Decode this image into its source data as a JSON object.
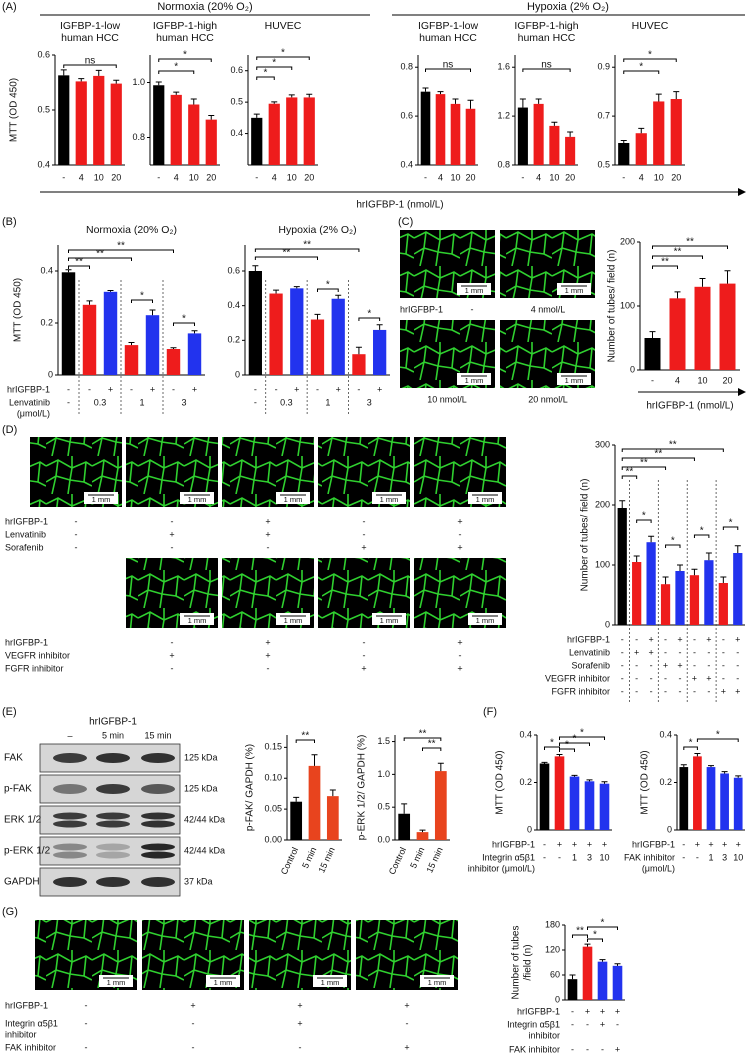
{
  "chart_data": [
    {
      "type": "bar",
      "title": [
        "IGFBP-1-low",
        "human HCC"
      ],
      "categories": [
        "-",
        "4",
        "10",
        "20"
      ],
      "values": [
        0.563,
        0.552,
        0.562,
        0.548
      ],
      "errors": [
        0.01,
        0.005,
        0.01,
        0.006
      ],
      "colors": [
        "#000000",
        "#ee1c1c",
        "#ee1c1c",
        "#ee1c1c"
      ],
      "ylim": [
        0.4,
        0.6
      ],
      "yticks": [
        0.4,
        0.5,
        0.6
      ],
      "annotations": [
        "ns"
      ]
    },
    {
      "type": "bar",
      "title": [
        "IGFBP-1-high",
        "human HCC"
      ],
      "categories": [
        "-",
        "4",
        "10",
        "20"
      ],
      "values": [
        0.99,
        0.955,
        0.92,
        0.865
      ],
      "errors": [
        0.012,
        0.01,
        0.02,
        0.015
      ],
      "colors": [
        "#000000",
        "#ee1c1c",
        "#ee1c1c",
        "#ee1c1c"
      ],
      "ylim": [
        0.7,
        1.1
      ],
      "yticks": [
        0.8,
        {
          "value": 1,
          "label": "1.0"
        }
      ],
      "annotations": [
        "*",
        "*"
      ]
    },
    {
      "type": "bar",
      "title": "HUVEC",
      "categories": [
        "-",
        "4",
        "10",
        "20"
      ],
      "values": [
        0.45,
        0.495,
        0.515,
        0.515
      ],
      "errors": [
        0.012,
        0.006,
        0.008,
        0.01
      ],
      "colors": [
        "#000000",
        "#ee1c1c",
        "#ee1c1c",
        "#ee1c1c"
      ],
      "ylim": [
        0.3,
        0.65
      ],
      "yticks": [
        0.4,
        0.5,
        0.6
      ],
      "annotations": [
        "*",
        "*",
        "*"
      ]
    },
    {
      "type": "bar",
      "title": [
        "IGFBP-1-low",
        "human HCC"
      ],
      "categories": [
        "-",
        "4",
        "10",
        "20"
      ],
      "values": [
        0.7,
        0.69,
        0.65,
        0.63
      ],
      "errors": [
        0.015,
        0.01,
        0.02,
        0.035
      ],
      "colors": [
        "#000000",
        "#ee1c1c",
        "#ee1c1c",
        "#ee1c1c"
      ],
      "ylim": [
        0.4,
        0.85
      ],
      "yticks": [
        0.4,
        0.6,
        0.8
      ],
      "annotations": [
        "ns"
      ]
    },
    {
      "type": "bar",
      "title": [
        "IGFBP-1-high",
        "human HCC"
      ],
      "categories": [
        "-",
        "4",
        "10",
        "20"
      ],
      "values": [
        1.27,
        1.3,
        1.12,
        1.03
      ],
      "errors": [
        0.07,
        0.04,
        0.03,
        0.04
      ],
      "colors": [
        "#000000",
        "#ee1c1c",
        "#ee1c1c",
        "#ee1c1c"
      ],
      "ylim": [
        0.8,
        1.7
      ],
      "yticks": [
        0.8,
        1.2,
        1.6
      ],
      "annotations": [
        "ns"
      ]
    },
    {
      "type": "bar",
      "title": "HUVEC",
      "categories": [
        "-",
        "4",
        "10",
        "20"
      ],
      "values": [
        0.59,
        0.63,
        0.76,
        0.77
      ],
      "errors": [
        0.01,
        0.02,
        0.03,
        0.03
      ],
      "colors": [
        "#000000",
        "#ee1c1c",
        "#ee1c1c",
        "#ee1c1c"
      ],
      "ylim": [
        0.5,
        0.95
      ],
      "yticks": [
        0.5,
        0.7,
        0.9
      ],
      "annotations": [
        "*",
        "*"
      ]
    },
    {
      "type": "bar",
      "title": "Normoxia (20% O₂)",
      "ylabel": "MTT (OD 450)",
      "values": [
        0.395,
        0.27,
        0.32,
        0.115,
        0.23,
        0.1,
        0.16
      ],
      "errors": [
        0.01,
        0.015,
        0.005,
        0.01,
        0.02,
        0.005,
        0.01
      ],
      "colors": [
        "#000000",
        "#ee1c1c",
        "#2233ee",
        "#ee1c1c",
        "#2233ee",
        "#ee1c1c",
        "#2233ee"
      ],
      "ylim": [
        0,
        0.5
      ],
      "yticks": [
        0,
        0.2,
        0.4
      ],
      "annotations": [
        "**",
        "**",
        "**",
        "*",
        "*"
      ],
      "conditions": [
        {
          "label": [
            "hrIGFBP-1"
          ],
          "values": [
            "-",
            "-",
            "+",
            "-",
            "+",
            "-",
            "+"
          ]
        },
        {
          "label": [
            "Lenvatinib",
            "(μmol/L)"
          ],
          "values": [
            "-",
            "0.3",
            "1",
            "3"
          ]
        }
      ]
    },
    {
      "type": "bar",
      "title": "Hypoxia (2% O₂)",
      "values": [
        0.6,
        0.47,
        0.5,
        0.32,
        0.44,
        0.12,
        0.26
      ],
      "errors": [
        0.03,
        0.02,
        0.01,
        0.03,
        0.02,
        0.04,
        0.03
      ],
      "colors": [
        "#000000",
        "#ee1c1c",
        "#2233ee",
        "#ee1c1c",
        "#2233ee",
        "#ee1c1c",
        "#2233ee"
      ],
      "ylim": [
        0,
        0.75
      ],
      "yticks": [
        0,
        0.2,
        0.4,
        0.6
      ],
      "annotations": [
        "**",
        "**",
        "*",
        "*"
      ],
      "conditions": [
        {
          "values": [
            "-",
            "-",
            "+",
            "-",
            "+",
            "-",
            "+"
          ]
        },
        {
          "values": [
            "-",
            "0.3",
            "1",
            "3"
          ]
        }
      ]
    },
    {
      "type": "bar",
      "ylabel": "Number of tubes/ field (n)",
      "xlabel": "hrIGFBP-1 (nmol/L)",
      "categories": [
        "-",
        "4",
        "10",
        "20"
      ],
      "values": [
        50,
        112,
        130,
        135
      ],
      "errors": [
        10,
        10,
        13,
        20
      ],
      "colors": [
        "#000000",
        "#ee1c1c",
        "#ee1c1c",
        "#ee1c1c"
      ],
      "ylim": [
        0,
        200
      ],
      "yticks": [
        0,
        100,
        200
      ],
      "annotations": [
        "**",
        "**",
        "**"
      ]
    },
    {
      "type": "bar",
      "ylabel": "Number of tubes/ field (n)",
      "values": [
        195,
        105,
        138,
        68,
        90,
        83,
        108,
        70,
        120
      ],
      "errors": [
        12,
        10,
        10,
        12,
        10,
        10,
        12,
        10,
        12
      ],
      "colors": [
        "#000000",
        "#ee1c1c",
        "#2233ee",
        "#ee1c1c",
        "#2233ee",
        "#ee1c1c",
        "#2233ee",
        "#ee1c1c",
        "#2233ee"
      ],
      "ylim": [
        0,
        300
      ],
      "yticks": [
        0,
        100,
        200,
        300
      ],
      "annotations": [
        "**",
        "**",
        "**",
        "**",
        "*",
        "*",
        "*",
        "*"
      ],
      "conditions": [
        {
          "label": [
            "hrIGFBP-1"
          ],
          "values": [
            "-",
            "-",
            "+",
            "-",
            "+",
            "-",
            "+",
            "-",
            "+"
          ]
        },
        {
          "label": [
            "Lenvatinib"
          ],
          "values": [
            "-",
            "+",
            "+",
            "-",
            "-",
            "-",
            "-",
            "-",
            "-"
          ]
        },
        {
          "label": [
            "Sorafenib"
          ],
          "values": [
            "-",
            "-",
            "-",
            "+",
            "+",
            "-",
            "-",
            "-",
            "-"
          ]
        },
        {
          "label": [
            "VEGFR inhibitor"
          ],
          "values": [
            "-",
            "-",
            "-",
            "-",
            "-",
            "+",
            "+",
            "-",
            "-"
          ]
        },
        {
          "label": [
            "FGFR inhibitor"
          ],
          "values": [
            "-",
            "-",
            "-",
            "-",
            "-",
            "-",
            "-",
            "+",
            "+"
          ]
        }
      ]
    },
    {
      "type": "bar",
      "ylabel": "p-FAK/ GAPDH (%)",
      "categories": [
        "Control",
        "5 min",
        "15 min"
      ],
      "values": [
        0.062,
        0.12,
        0.071
      ],
      "errors": [
        0.007,
        0.018,
        0.01
      ],
      "colors": [
        "#000000",
        "#e8441e",
        "#e8441e"
      ],
      "ylim": [
        0,
        0.17
      ],
      "yticks": [
        {
          "value": 0,
          "label": "0.00"
        },
        {
          "value": 0.05,
          "label": "0.05"
        },
        {
          "value": 0.1,
          "label": "0.10"
        },
        {
          "value": 0.15,
          "label": "0.15"
        }
      ],
      "annotations": [
        "**"
      ]
    },
    {
      "type": "bar",
      "ylabel": "p-ERK 1/2/ GAPDH (%)",
      "categories": [
        "Control",
        "5 min",
        "15 min"
      ],
      "values": [
        0.4,
        0.12,
        1.05
      ],
      "errors": [
        0.15,
        0.03,
        0.12
      ],
      "colors": [
        "#000000",
        "#e8441e",
        "#e8441e"
      ],
      "ylim": [
        0,
        1.6
      ],
      "yticks": [
        {
          "value": 0,
          "label": "0.0"
        },
        {
          "value": 0.5,
          "label": "0.5"
        },
        {
          "value": 1,
          "label": "1.0"
        },
        {
          "value": 1.5,
          "label": "1.5"
        }
      ],
      "annotations": [
        "**",
        "**"
      ]
    },
    {
      "type": "bar",
      "ylabel": "MTT (OD 450)",
      "values": [
        0.28,
        0.31,
        0.225,
        0.205,
        0.195
      ],
      "errors": [
        0.005,
        0.008,
        0.005,
        0.006,
        0.008
      ],
      "colors": [
        "#000000",
        "#ee1c1c",
        "#2233ee",
        "#2233ee",
        "#2233ee"
      ],
      "ylim": [
        0,
        0.4
      ],
      "yticks": [
        0,
        0.2,
        0.4
      ],
      "annotations": [
        "*",
        "*",
        "*",
        "*"
      ],
      "conditions": [
        {
          "label": [
            "hrIGFBP-1"
          ],
          "values": [
            "-",
            "+",
            "+",
            "+",
            "+"
          ]
        },
        {
          "label": [
            "Integrin α5β1",
            "inhibitor (μmol/L)"
          ],
          "values": [
            "-",
            "-",
            "1",
            "3",
            "10"
          ]
        }
      ]
    },
    {
      "type": "bar",
      "ylabel": "MTT (OD 450)",
      "values": [
        0.265,
        0.31,
        0.265,
        0.238,
        0.22
      ],
      "errors": [
        0.01,
        0.012,
        0.006,
        0.008,
        0.008
      ],
      "colors": [
        "#000000",
        "#ee1c1c",
        "#2233ee",
        "#2233ee",
        "#2233ee"
      ],
      "ylim": [
        0,
        0.4
      ],
      "yticks": [
        0,
        0.2,
        0.4
      ],
      "annotations": [
        "*",
        "*"
      ],
      "conditions": [
        {
          "label": [
            "hrIGFBP-1"
          ],
          "values": [
            "-",
            "+",
            "+",
            "+",
            "+"
          ]
        },
        {
          "label": [
            "FAK inhibitor",
            "(μmol/L)"
          ],
          "values": [
            "-",
            "-",
            "1",
            "3",
            "10"
          ]
        }
      ]
    },
    {
      "type": "bar",
      "ylabel": [
        "Number of tubes",
        "/field (n)"
      ],
      "values": [
        50,
        128,
        92,
        82
      ],
      "errors": [
        10,
        6,
        5,
        5
      ],
      "colors": [
        "#000000",
        "#ee1c1c",
        "#2233ee",
        "#2233ee"
      ],
      "ylim": [
        0,
        180
      ],
      "yticks": [
        0,
        60,
        120,
        180
      ],
      "annotations": [
        "**",
        "*",
        "*"
      ],
      "conditions": [
        {
          "label": [
            "hrIGFBP-1"
          ],
          "values": [
            "-",
            "+",
            "+",
            "+"
          ]
        },
        {
          "label": [
            "Integrin α5β1",
            "inhibitor"
          ],
          "values": [
            "-",
            "-",
            "+",
            "-"
          ]
        },
        {
          "label": [
            "FAK inhibitor"
          ],
          "values": [
            "-",
            "-",
            "-",
            "+"
          ]
        }
      ]
    }
  ],
  "figure": {
    "panel_labels": [
      "(A)",
      "(B)",
      "(C)",
      "(D)",
      "(E)",
      "(F)",
      "(G)"
    ],
    "A": {
      "headers": [
        "Normoxia (20% O₂)",
        "Hypoxia (2% O₂)"
      ],
      "ylabel": "MTT (OD 450)",
      "xlabel": "hrIGFBP-1 (nmol/L)"
    },
    "scale_bar": "1 mm",
    "C_images": {
      "label": "hrIGFBP-1",
      "captions": [
        "-",
        "4 nmol/L",
        "10 nmol/L",
        "20 nmol/L"
      ]
    },
    "D_images": [
      {
        "rows": [
          {
            "label": "hrIGFBP-1",
            "values": [
              "-",
              "-",
              "+",
              "-",
              "+"
            ]
          },
          {
            "label": "Lenvatinib",
            "values": [
              "-",
              "+",
              "+",
              "-",
              "-"
            ]
          },
          {
            "label": "Sorafenib",
            "values": [
              "-",
              "-",
              "-",
              "+",
              "+"
            ]
          }
        ]
      },
      {
        "rows": [
          {
            "label": "hrIGFBP-1",
            "values": [
              "-",
              "+",
              "-",
              "+"
            ]
          },
          {
            "label": "VEGFR inhibitor",
            "values": [
              "+",
              "+",
              "-",
              "-"
            ]
          },
          {
            "label": "FGFR inhibitor",
            "values": [
              "-",
              "-",
              "+",
              "+"
            ]
          }
        ]
      }
    ],
    "E_blot": {
      "treatment": "hrIGFBP-1",
      "lanes": [
        "–",
        "5 min",
        "15 min"
      ],
      "rows": [
        {
          "protein": "FAK",
          "size": "125 kDa"
        },
        {
          "protein": "p-FAK",
          "size": "125 kDa"
        },
        {
          "protein": "ERK 1/2",
          "size": "42/44 kDa"
        },
        {
          "protein": "p-ERK 1/2",
          "size": "42/44 kDa"
        },
        {
          "protein": "GAPDH",
          "size": "37 kDa"
        }
      ]
    },
    "G_images": {
      "rows": [
        {
          "label": [
            "hrIGFBP-1"
          ],
          "values": [
            "-",
            "+",
            "+",
            "+"
          ]
        },
        {
          "label": [
            "Integrin α5β1",
            "inhibitor"
          ],
          "values": [
            "-",
            "-",
            "+",
            "-"
          ]
        },
        {
          "label": [
            "FAK inhibitor"
          ],
          "values": [
            "-",
            "-",
            "-",
            "+"
          ]
        }
      ]
    }
  }
}
